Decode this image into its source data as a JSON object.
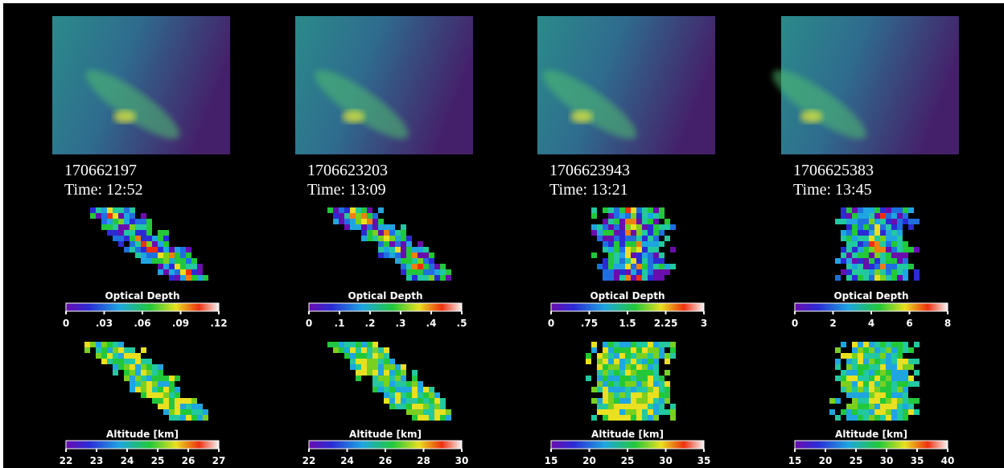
{
  "panels": [
    {
      "id": "170662197",
      "time": "Time: 12:52",
      "optical_depth": {
        "label": "Optical Depth",
        "ticks": [
          "0",
          ".03",
          ".06",
          ".09",
          ".12"
        ]
      },
      "altitude": {
        "label": "Altitude [km]",
        "ticks": [
          "22",
          "23",
          "24",
          "25",
          "26",
          "27"
        ]
      }
    },
    {
      "id": "1706623203",
      "time": "Time: 13:09",
      "optical_depth": {
        "label": "Optical Depth",
        "ticks": [
          "0",
          ".1",
          ".2",
          ".3",
          ".4",
          ".5"
        ]
      },
      "altitude": {
        "label": "Altitude [km]",
        "ticks": [
          "22",
          "24",
          "26",
          "28",
          "30"
        ]
      }
    },
    {
      "id": "1706623943",
      "time": "Time: 13:21",
      "optical_depth": {
        "label": "Optical Depth",
        "ticks": [
          "0",
          ".75",
          "1.5",
          "2.25",
          "3"
        ]
      },
      "altitude": {
        "label": "Altitude [km]",
        "ticks": [
          "15",
          "20",
          "25",
          "30",
          "35"
        ]
      }
    },
    {
      "id": "1706625383",
      "time": "Time: 13:45",
      "optical_depth": {
        "label": "Optical Depth",
        "ticks": [
          "0",
          "2",
          "4",
          "6",
          "8"
        ]
      },
      "altitude": {
        "label": "Altitude [km]",
        "ticks": [
          "15",
          "20",
          "25",
          "30",
          "35",
          "40"
        ]
      }
    }
  ]
}
